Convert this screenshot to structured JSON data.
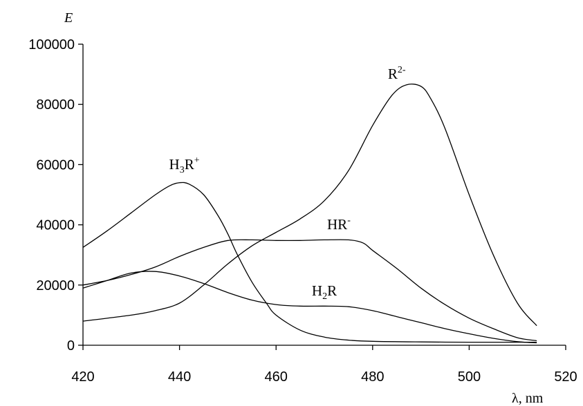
{
  "chart_data": {
    "type": "line",
    "title": "",
    "xlabel": "λ, nm",
    "ylabel": "E",
    "xlim": [
      420,
      520
    ],
    "ylim": [
      0,
      100000
    ],
    "xticks": [
      420,
      440,
      460,
      480,
      500,
      520
    ],
    "yticks": [
      0,
      20000,
      40000,
      60000,
      80000,
      100000
    ],
    "grid": false,
    "legend": "none",
    "series": [
      {
        "name": "H3R+",
        "label_base": "H",
        "label_sub": "3",
        "label_mid": "R",
        "label_sup": "+",
        "label_at": [
          441,
          58500
        ],
        "x": [
          420,
          425,
          430,
          435,
          438,
          440,
          442,
          445,
          448,
          450,
          452,
          455,
          458,
          460,
          465,
          470,
          475,
          480,
          490,
          500,
          510,
          514
        ],
        "y": [
          32500,
          38000,
          44000,
          50000,
          53000,
          54000,
          53500,
          50000,
          43000,
          37000,
          30000,
          21000,
          14000,
          10000,
          5000,
          2700,
          1700,
          1300,
          1100,
          1000,
          1000,
          1000
        ]
      },
      {
        "name": "R2-",
        "label_base": "R",
        "label_sub": "",
        "label_mid": "",
        "label_sup": "2-",
        "label_at": [
          485,
          88500
        ],
        "x": [
          420,
          430,
          435,
          440,
          445,
          450,
          455,
          460,
          465,
          470,
          475,
          480,
          484,
          487,
          490,
          492,
          495,
          500,
          505,
          510,
          514
        ],
        "y": [
          8000,
          10000,
          11500,
          14000,
          20000,
          27000,
          33000,
          37500,
          42000,
          48000,
          58000,
          73000,
          83000,
          86500,
          86000,
          82000,
          72000,
          50000,
          30000,
          14000,
          6500
        ]
      },
      {
        "name": "HR-",
        "label_base": "HR",
        "label_sub": "",
        "label_mid": "",
        "label_sup": "-",
        "label_at": [
          473,
          38500
        ],
        "x": [
          420,
          425,
          430,
          435,
          440,
          445,
          450,
          455,
          460,
          465,
          470,
          475,
          478,
          480,
          485,
          490,
          495,
          500,
          505,
          510,
          514
        ],
        "y": [
          20000,
          21500,
          23500,
          26000,
          29500,
          32500,
          34800,
          35000,
          34800,
          34800,
          35000,
          35000,
          34000,
          31500,
          25500,
          19000,
          13500,
          9000,
          5500,
          2500,
          1500
        ]
      },
      {
        "name": "H2R",
        "label_base": "H",
        "label_sub": "2",
        "label_mid": "R",
        "label_sup": "",
        "label_at": [
          470,
          16500
        ],
        "x": [
          420,
          425,
          430,
          435,
          440,
          445,
          450,
          455,
          460,
          465,
          470,
          475,
          480,
          485,
          490,
          495,
          500,
          505,
          510,
          514
        ],
        "y": [
          19000,
          21500,
          24000,
          24500,
          23000,
          20500,
          17500,
          15000,
          13500,
          13000,
          13000,
          12800,
          11500,
          9500,
          7500,
          5500,
          3800,
          2300,
          1200,
          800
        ]
      }
    ]
  }
}
